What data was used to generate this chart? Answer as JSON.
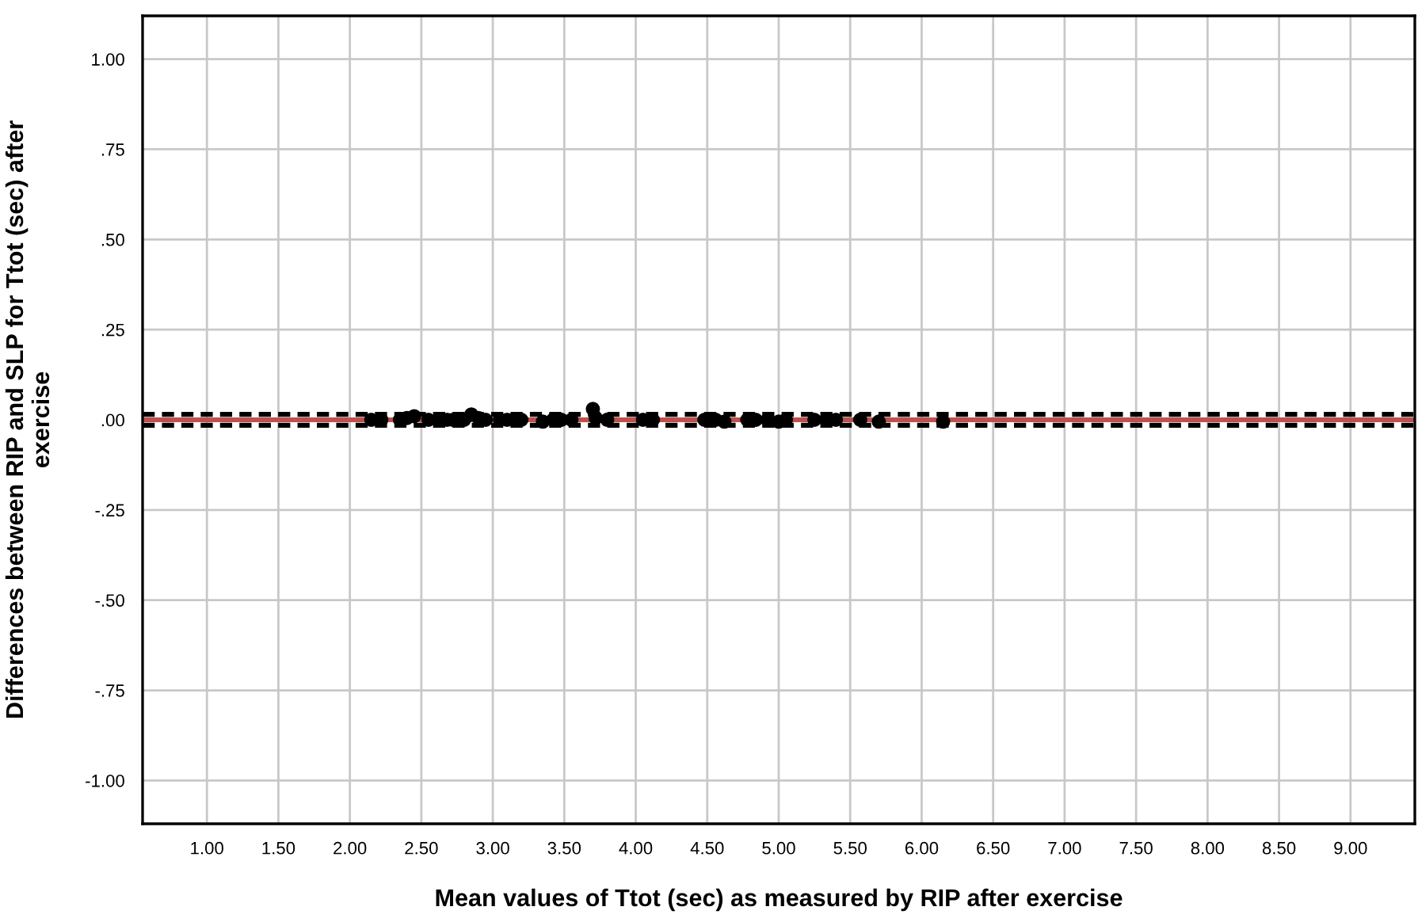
{
  "chart_data": {
    "type": "scatter",
    "xlabel": "Mean values of Ttot (sec) as measured by RIP after exercise",
    "ylabel": "Differences between RIP and SLP for Ttot (sec) after\nexercise",
    "series": [
      {
        "color": "#000000",
        "x": [
          2.15,
          2.22,
          2.35,
          2.4,
          2.45,
          2.5,
          2.55,
          2.62,
          2.68,
          2.72,
          2.8,
          2.85,
          2.9,
          2.95,
          3.0,
          3.05,
          3.1,
          3.15,
          3.2,
          3.35,
          3.42,
          3.48,
          3.55,
          3.7,
          3.72,
          3.8,
          4.05,
          4.12,
          4.48,
          4.56,
          4.62,
          4.78,
          4.84,
          4.92,
          5.0,
          5.05,
          5.25,
          5.33,
          5.4,
          5.57,
          5.7,
          6.15
        ],
        "values": [
          0.0,
          0.0,
          0.0,
          0.005,
          0.01,
          null,
          0.0,
          0.0,
          0.0,
          0.0,
          0.0,
          0.015,
          0.005,
          0.0,
          null,
          0.0,
          0.0,
          0.0,
          0.0,
          -0.005,
          0.0,
          0.0,
          0.0,
          0.03,
          0.005,
          0.0,
          0.0,
          0.0,
          0.0,
          0.0,
          -0.005,
          0.0,
          0.0,
          0.0,
          -0.005,
          0.0,
          0.0,
          0.0,
          0.0,
          0.0,
          -0.005,
          -0.005
        ]
      }
    ],
    "xlim": [
      0.55,
      9.45
    ],
    "ylim": [
      -1.12,
      1.12
    ],
    "xticks": [
      {
        "value": 1,
        "label": "1.00"
      },
      {
        "value": 1.5,
        "label": "1.50"
      },
      {
        "value": 2,
        "label": "2.00"
      },
      {
        "value": 2.5,
        "label": "2.50"
      },
      {
        "value": 3,
        "label": "3.00"
      },
      {
        "value": 3.5,
        "label": "3.50"
      },
      {
        "value": 4,
        "label": "4.00"
      },
      {
        "value": 4.5,
        "label": "4.50"
      },
      {
        "value": 5,
        "label": "5.00"
      },
      {
        "value": 5.5,
        "label": "5.50"
      },
      {
        "value": 6,
        "label": "6.00"
      },
      {
        "value": 6.5,
        "label": "6.50"
      },
      {
        "value": 7,
        "label": "7.00"
      },
      {
        "value": 7.5,
        "label": "7.50"
      },
      {
        "value": 8,
        "label": "8.00"
      },
      {
        "value": 8.5,
        "label": "8.50"
      },
      {
        "value": 9,
        "label": "9.00"
      }
    ],
    "yticks": [
      {
        "value": -1,
        "label": "-1.00"
      },
      {
        "value": -0.75,
        "label": "-.75"
      },
      {
        "value": -0.5,
        "label": "-.50"
      },
      {
        "value": -0.25,
        "label": "-.25"
      },
      {
        "value": 0,
        "label": ".00"
      },
      {
        "value": 0.25,
        "label": ".25"
      },
      {
        "value": 0.5,
        "label": ".50"
      },
      {
        "value": 0.75,
        "label": ".75"
      },
      {
        "value": 1,
        "label": "1.00"
      }
    ],
    "ref_lines": [
      {
        "axis": "y",
        "value": 0,
        "color": "#c0504d",
        "line_style": "solid"
      },
      {
        "axis": "y",
        "value": 0.015,
        "color": "#000000",
        "line_style": "dashed"
      },
      {
        "axis": "y",
        "value": -0.015,
        "color": "#000000",
        "line_style": "dashed"
      }
    ],
    "grid": true,
    "marker": "circle",
    "legend": false
  }
}
